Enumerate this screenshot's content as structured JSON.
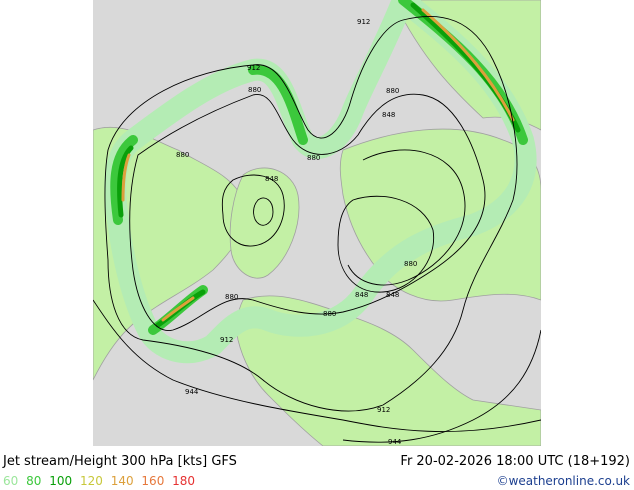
{
  "header": {
    "title": "Jet stream/Height 300 hPa [kts] GFS",
    "valid_time": "Fr 20-02-2026 18:00 UTC (18+192)"
  },
  "legend": {
    "items": [
      {
        "label": "60",
        "color": "#9be69b"
      },
      {
        "label": "80",
        "color": "#3cc83c"
      },
      {
        "label": "100",
        "color": "#0aa00a"
      },
      {
        "label": "120",
        "color": "#c8c83c"
      },
      {
        "label": "140",
        "color": "#dca03c"
      },
      {
        "label": "160",
        "color": "#e6783c"
      },
      {
        "label": "180",
        "color": "#e63232"
      }
    ]
  },
  "credit": "©weatheronline.co.uk",
  "contour_labels": [
    "912",
    "912",
    "880",
    "880",
    "848",
    "880",
    "880",
    "848",
    "880",
    "848",
    "848",
    "880",
    "880",
    "912",
    "912",
    "944",
    "944"
  ],
  "colors": {
    "ocean": "#d9d9d9",
    "land": "#c3f0a5",
    "coast": "#a0a0a0",
    "jet_light": "#b4ecb4",
    "jet_mid": "#3cc83c",
    "jet_strong": "#0aa00a",
    "jet_core": "#dca03c"
  }
}
